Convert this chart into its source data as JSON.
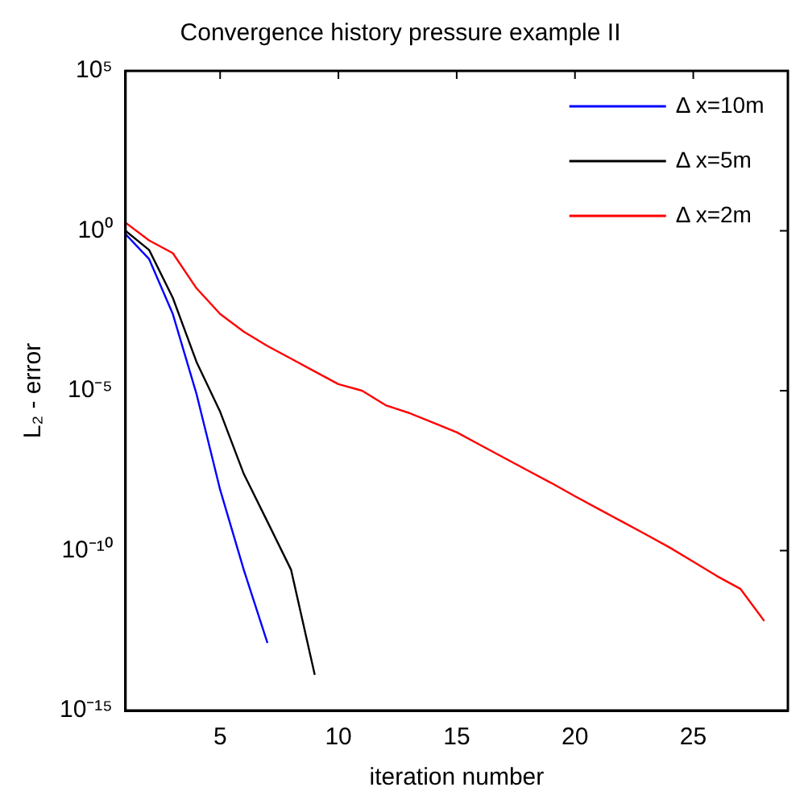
{
  "chart_data": {
    "type": "line",
    "title": "Convergence history pressure example II",
    "xlabel": "iteration number",
    "ylabel": "L₂ - error",
    "log": "y",
    "xlim": [
      1,
      29
    ],
    "xticks": [
      5,
      10,
      15,
      20,
      25
    ],
    "ylim": [
      1e-15,
      100000
    ],
    "yticks": [
      {
        "value": 100000,
        "label": "10⁵"
      },
      {
        "value": 1,
        "label": "10⁰"
      },
      {
        "value": 1e-05,
        "label": "10⁻⁵"
      },
      {
        "value": 1e-10,
        "label": "10⁻¹⁰"
      },
      {
        "value": 1e-15,
        "label": "10⁻¹⁵"
      }
    ],
    "grid": false,
    "legend": "top right",
    "marker": "none",
    "line_style": "solid",
    "series": [
      {
        "name": "Δ x=10m",
        "color": "#0000ff",
        "x": [
          1,
          2,
          3,
          4,
          5,
          6,
          7
        ],
        "values": [
          0.79,
          0.13,
          0.0025,
          8e-06,
          8e-09,
          2.5e-11,
          1.3e-13
        ]
      },
      {
        "name": "Δ x=5m",
        "color": "#000000",
        "x": [
          1,
          2,
          3,
          4,
          5,
          6,
          7,
          8,
          9
        ],
        "values": [
          1,
          0.25,
          0.008,
          8e-05,
          2.2e-06,
          2.5e-08,
          8e-10,
          2.5e-11,
          1.3e-14
        ]
      },
      {
        "name": "Δ x=2m",
        "color": "#ff0000",
        "x": [
          1,
          2,
          3,
          4,
          5,
          6,
          7,
          8,
          9,
          10,
          11,
          12,
          13,
          14,
          15,
          16,
          17,
          18,
          19,
          20,
          21,
          22,
          23,
          24,
          25,
          26,
          27,
          28
        ],
        "values": [
          1.8,
          0.5,
          0.2,
          0.016,
          0.0025,
          0.0007,
          0.00025,
          0.0001,
          4e-05,
          1.6e-05,
          1e-05,
          3.5e-06,
          2e-06,
          1e-06,
          5e-07,
          2e-07,
          8e-08,
          3.2e-08,
          1.3e-08,
          5e-09,
          2e-09,
          8e-10,
          3.2e-10,
          1.25e-10,
          4.5e-11,
          1.6e-11,
          6.3e-12,
          6.3e-13
        ]
      }
    ]
  }
}
